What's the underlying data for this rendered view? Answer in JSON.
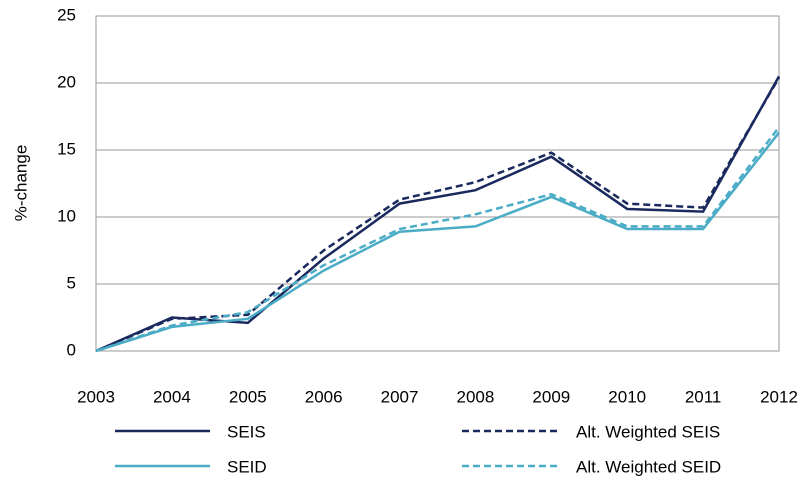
{
  "chart_data": {
    "type": "line",
    "y_label": "%-change",
    "categories": [
      "2003",
      "2004",
      "2005",
      "2006",
      "2007",
      "2008",
      "2009",
      "2010",
      "2011",
      "2012"
    ],
    "series": [
      {
        "name": "SEIS",
        "color": "#1b2a5e",
        "dashed": false,
        "values": [
          0,
          2.5,
          2.1,
          6.9,
          11.0,
          12.0,
          14.5,
          10.6,
          10.4,
          20.5
        ]
      },
      {
        "name": "Alt. Weighted SEIS",
        "color": "#1b2a5e",
        "dashed": true,
        "values": [
          0,
          2.4,
          2.7,
          7.5,
          11.3,
          12.6,
          14.8,
          11.0,
          10.7,
          20.4
        ]
      },
      {
        "name": "SEID",
        "color": "#4bacc6",
        "dashed": false,
        "values": [
          0,
          1.8,
          2.4,
          6.0,
          8.9,
          9.3,
          11.5,
          9.1,
          9.1,
          16.3
        ]
      },
      {
        "name": "Alt. Weighted SEID",
        "color": "#4bacc6",
        "dashed": true,
        "values": [
          0,
          1.9,
          2.9,
          6.4,
          9.1,
          10.2,
          11.7,
          9.3,
          9.3,
          16.7
        ]
      }
    ],
    "ylim": [
      0,
      25
    ],
    "yticks": [
      0,
      5,
      10,
      15,
      20,
      25
    ],
    "grid": true
  }
}
